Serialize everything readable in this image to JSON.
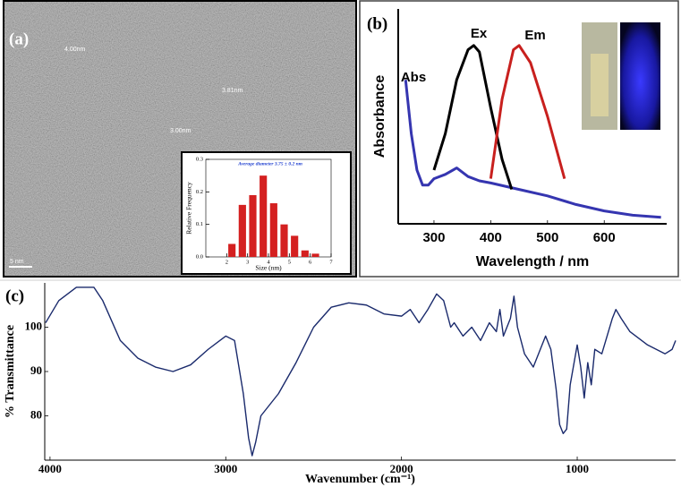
{
  "panels": {
    "a": "(a)",
    "b": "(b)",
    "c": "(c)"
  },
  "tem_annotations": [
    "4.00nm",
    "3.81nm",
    "3.00nm"
  ],
  "scale_bar": "5 nm",
  "chart_data": [
    {
      "type": "histogram",
      "title": "Average diameter 3.75 ± 0.2 nm",
      "xlabel": "Size (nm)",
      "ylabel": "Relative Frequency",
      "bins": [
        2.0,
        2.5,
        3.0,
        3.5,
        4.0,
        4.5,
        5.0,
        5.5,
        6.0,
        6.5
      ],
      "values": [
        0.04,
        0.16,
        0.19,
        0.25,
        0.165,
        0.1,
        0.065,
        0.02,
        0.01
      ],
      "color": "#d42020",
      "xlim": [
        1,
        7
      ],
      "ylim": [
        0,
        0.3
      ],
      "xticks": [
        2,
        3,
        4,
        5,
        6,
        7
      ],
      "yticks": [
        {
          "value": 0,
          "label": "0.0"
        },
        0.1,
        0.2,
        0.3
      ]
    },
    {
      "type": "line",
      "xlabel": "Wavelength / nm",
      "ylabel": "Absorbance",
      "xlim": [
        237,
        710
      ],
      "ylim": [
        0,
        1
      ],
      "xticks": [
        300,
        400,
        500,
        600
      ],
      "series": [
        {
          "name": "Abs",
          "color": "#3535b0",
          "x": [
            250,
            260,
            270,
            280,
            290,
            300,
            320,
            340,
            360,
            380,
            400,
            450,
            500,
            550,
            600,
            650,
            700
          ],
          "values": [
            0.67,
            0.42,
            0.25,
            0.18,
            0.18,
            0.21,
            0.23,
            0.26,
            0.22,
            0.2,
            0.19,
            0.16,
            0.13,
            0.09,
            0.06,
            0.04,
            0.03
          ]
        },
        {
          "name": "Ex",
          "color": "#000000",
          "x": [
            300,
            320,
            340,
            360,
            370,
            380,
            400,
            420,
            437
          ],
          "values": [
            0.25,
            0.42,
            0.67,
            0.81,
            0.83,
            0.8,
            0.54,
            0.3,
            0.16
          ]
        },
        {
          "name": "Em",
          "color": "#c8201e",
          "x": [
            400,
            420,
            440,
            450,
            470,
            500,
            530
          ],
          "values": [
            0.21,
            0.58,
            0.81,
            0.83,
            0.75,
            0.5,
            0.21
          ]
        }
      ]
    },
    {
      "type": "line",
      "xlabel": "Wavenumber (cm⁻¹)",
      "ylabel": "% Transmittance",
      "xlim": [
        4030,
        440
      ],
      "ylim": [
        70,
        110
      ],
      "xticks": [
        1000,
        2000,
        3000,
        4000
      ],
      "yticks": [
        80,
        90,
        100
      ],
      "series": [
        {
          "color": "#1a2a6c",
          "x": [
            4025,
            3950,
            3850,
            3750,
            3700,
            3600,
            3500,
            3400,
            3300,
            3200,
            3100,
            3000,
            2950,
            2900,
            2870,
            2850,
            2830,
            2800,
            2700,
            2600,
            2500,
            2400,
            2300,
            2200,
            2100,
            2000,
            1950,
            1900,
            1850,
            1800,
            1760,
            1720,
            1700,
            1650,
            1600,
            1550,
            1500,
            1460,
            1440,
            1420,
            1380,
            1360,
            1340,
            1300,
            1250,
            1200,
            1180,
            1150,
            1120,
            1100,
            1080,
            1060,
            1040,
            1000,
            980,
            960,
            940,
            920,
            900,
            860,
            800,
            780,
            750,
            700,
            600,
            500,
            460,
            440
          ],
          "values": [
            101,
            106,
            109,
            109,
            106,
            97,
            93,
            91,
            90,
            91.5,
            95,
            98,
            97,
            85,
            75,
            71,
            74,
            80,
            85,
            92,
            100,
            104.5,
            105.5,
            105,
            103,
            102.5,
            104,
            101,
            104,
            107.5,
            106,
            100,
            101,
            98,
            100,
            97,
            101,
            99,
            104,
            98,
            102,
            107,
            100,
            94,
            91,
            96,
            98,
            95,
            86,
            78,
            76,
            77,
            87,
            96,
            91,
            84,
            92,
            87,
            95,
            94,
            102,
            104,
            102,
            99,
            96,
            94,
            95,
            97
          ]
        }
      ]
    }
  ]
}
